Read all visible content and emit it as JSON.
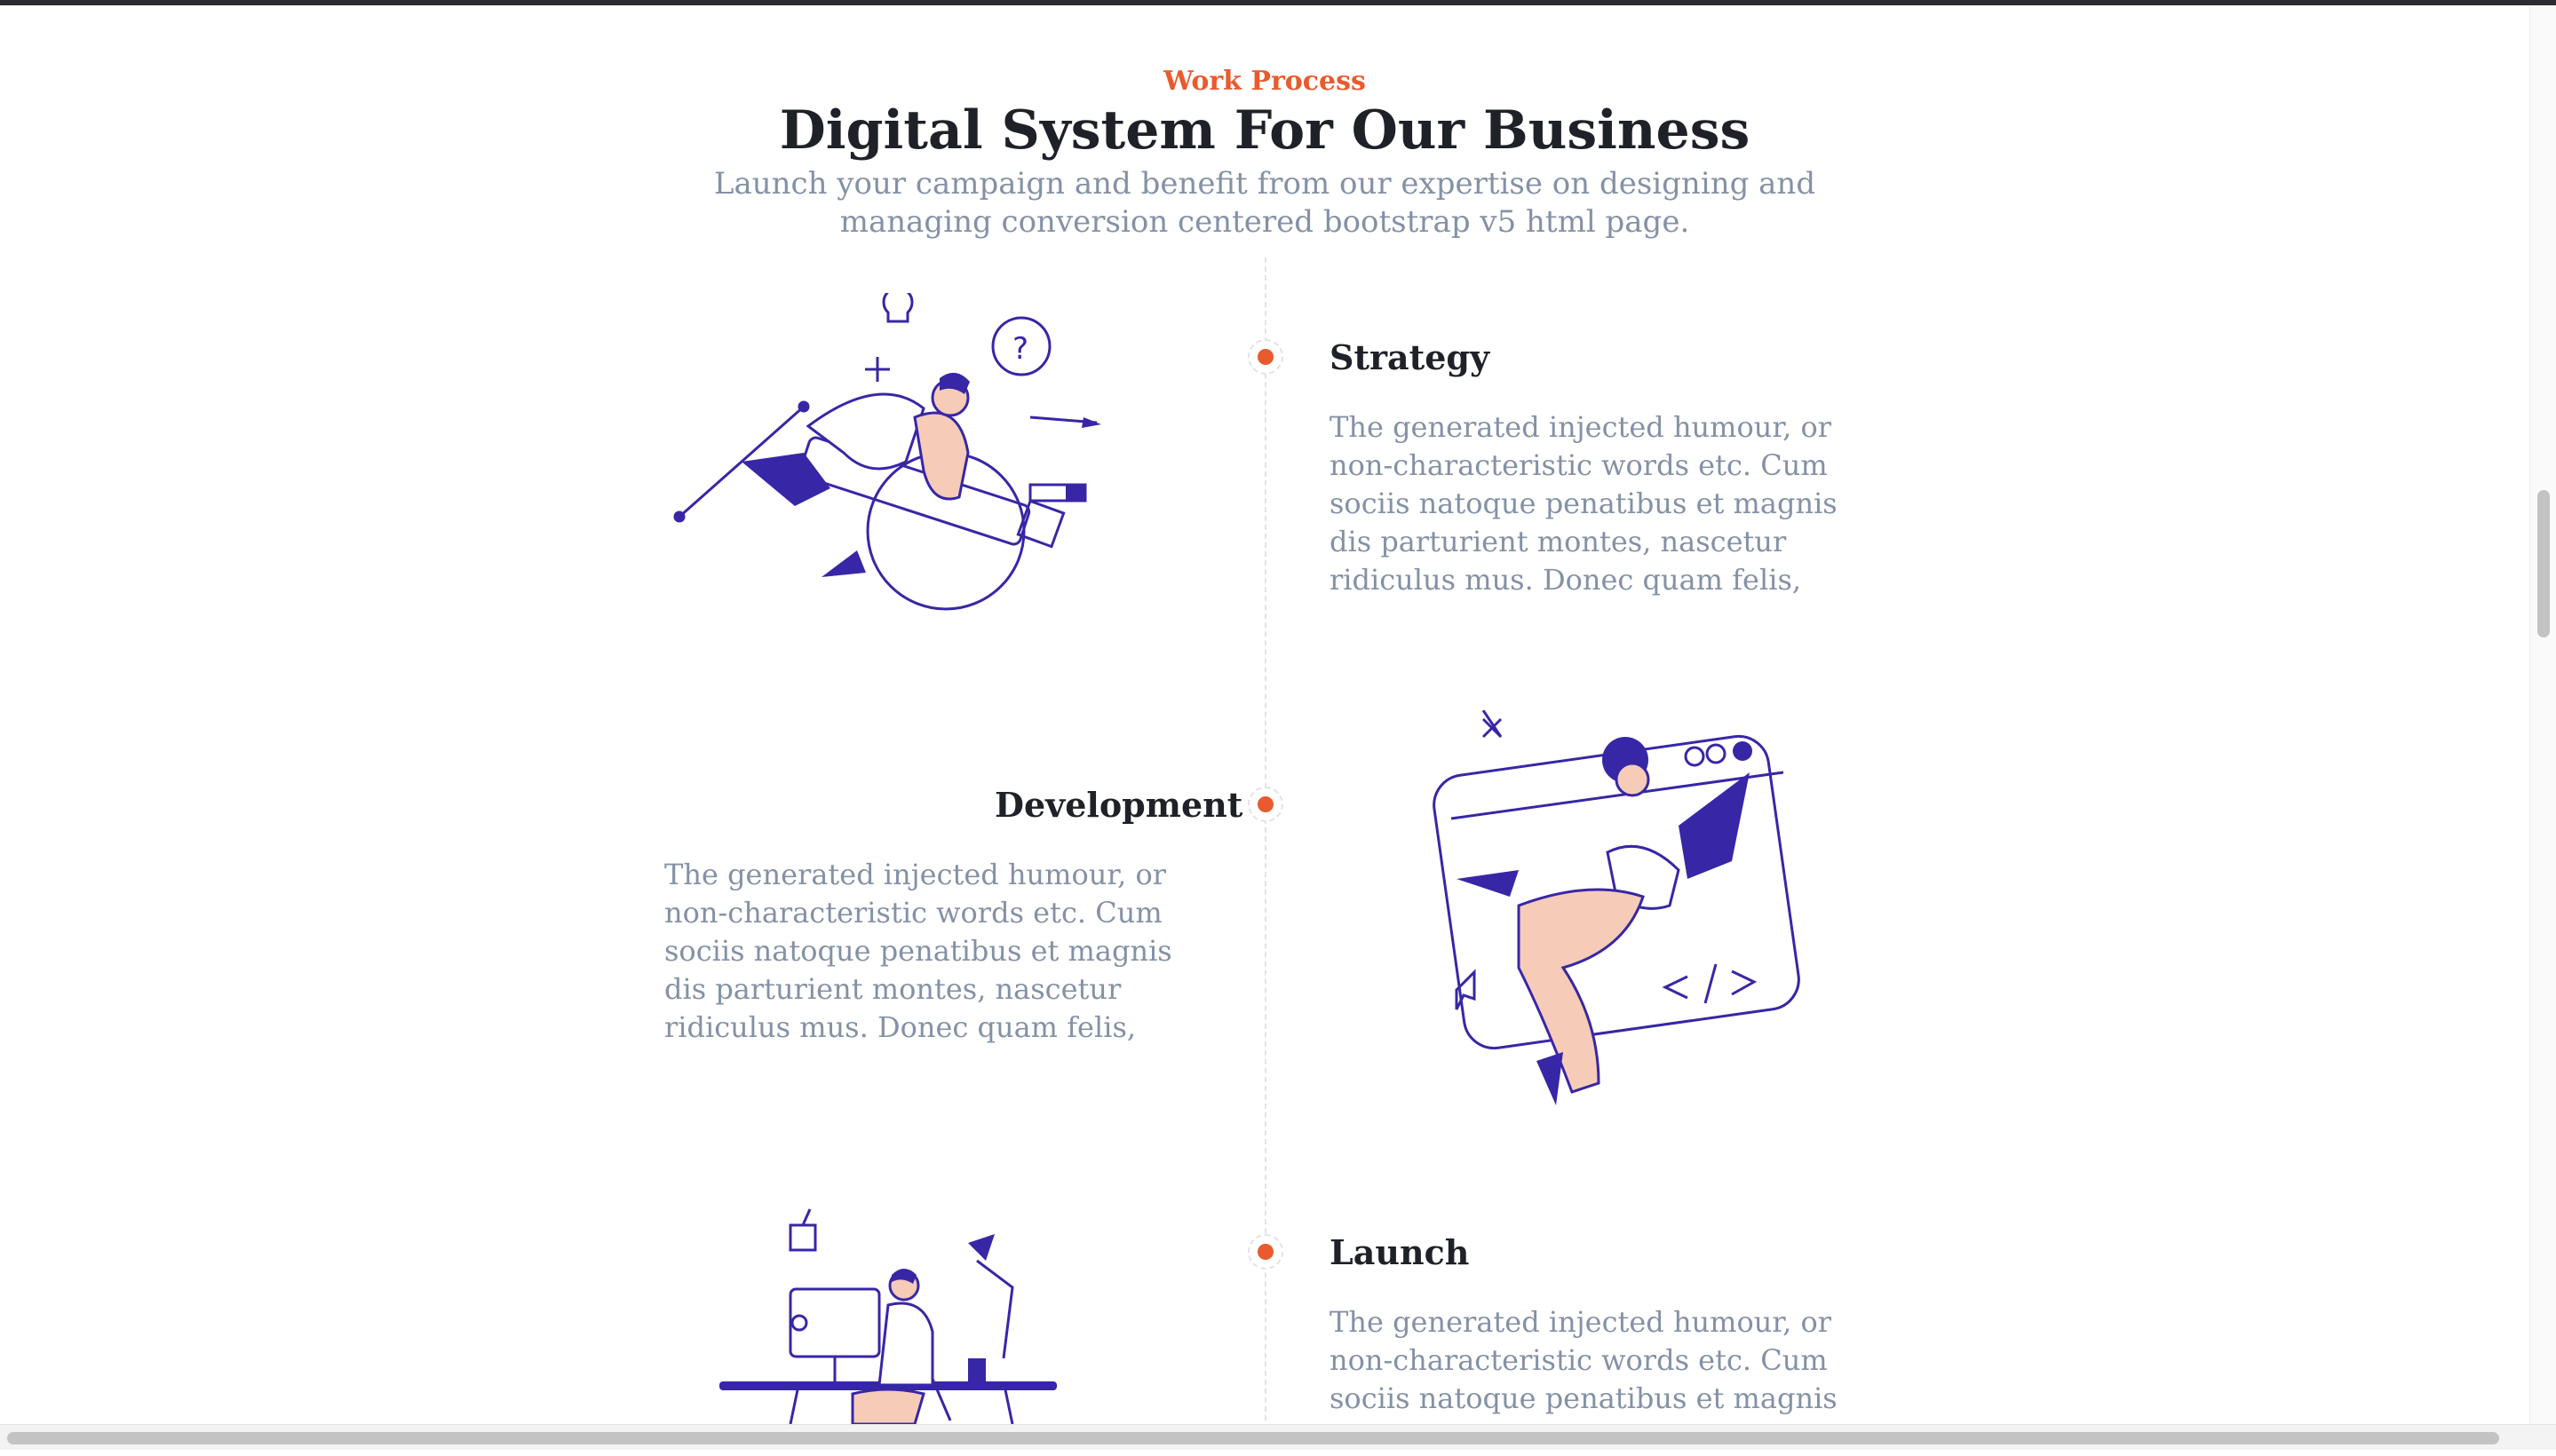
{
  "header": {
    "eyebrow": "Work Process",
    "title": "Digital System For Our Business",
    "subtitle": "Launch your campaign and benefit from our expertise on designing and managing conversion centered bootstrap v5 html page."
  },
  "steps": [
    {
      "title": "Strategy",
      "text": "The generated injected humour, or non-characteristic words etc. Cum sociis natoque penatibus et magnis dis parturient montes, nascetur ridiculus mus. Donec quam felis,"
    },
    {
      "title": "Development",
      "text": "The generated injected humour, or non-characteristic words etc. Cum sociis natoque penatibus et magnis dis parturient montes, nascetur ridiculus mus. Donec quam felis,"
    },
    {
      "title": "Launch",
      "text": "The generated injected humour, or non-characteristic words etc. Cum sociis natoque penatibus et magnis dis"
    }
  ],
  "illustrations": [
    "rocket-pen-illustration",
    "floating-developer-illustration",
    "desk-workstation-illustration"
  ],
  "colors": {
    "accent": "#e95a2e",
    "heading": "#1f2128",
    "muted": "#8491a5",
    "illustration": "#3727a6",
    "skin": "#f6cbb8"
  }
}
